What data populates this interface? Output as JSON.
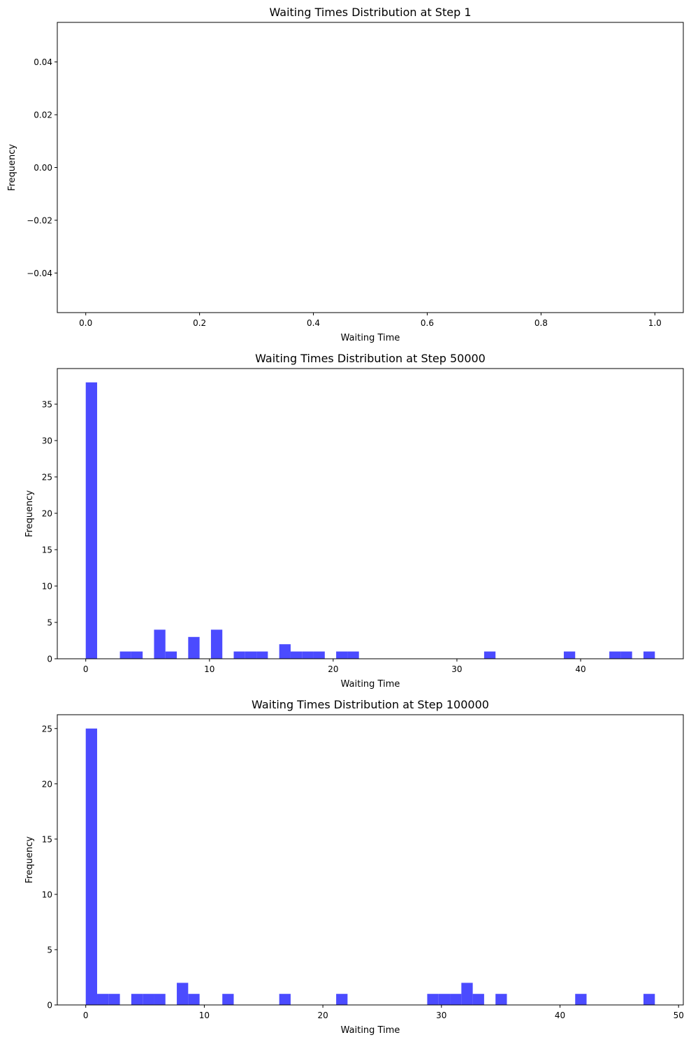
{
  "chart_data": [
    {
      "type": "bar",
      "title": "Waiting Times Distribution at Step 1",
      "xlabel": "Waiting Time",
      "ylabel": "Frequency",
      "xlim": [
        -0.05,
        1.05
      ],
      "ylim": [
        -0.055,
        0.055
      ],
      "xticks": [
        0,
        0.2,
        0.4,
        0.6,
        0.8,
        1.0
      ],
      "xtick_labels": [
        "0.0",
        "0.2",
        "0.4",
        "0.6",
        "0.8",
        "1.0"
      ],
      "yticks": [
        -0.04,
        -0.02,
        0,
        0.02,
        0.04
      ],
      "ytick_labels": [
        "−0.04",
        "−0.02",
        "0.00",
        "0.02",
        "0.04"
      ],
      "bar_color": "#4b4bff",
      "bins": []
    },
    {
      "type": "bar",
      "title": "Waiting Times Distribution at Step 50000",
      "xlabel": "Waiting Time",
      "ylabel": "Frequency",
      "xlim": [
        -2.3,
        48.3
      ],
      "ylim": [
        0,
        39.9
      ],
      "xticks": [
        0,
        10,
        20,
        30,
        40
      ],
      "xtick_labels": [
        "0",
        "10",
        "20",
        "30",
        "40"
      ],
      "yticks": [
        0,
        5,
        10,
        15,
        20,
        25,
        30,
        35
      ],
      "ytick_labels": [
        "0",
        "5",
        "10",
        "15",
        "20",
        "25",
        "30",
        "35"
      ],
      "bar_color": "#4b4bff",
      "bins": [
        {
          "x0": 0.0,
          "x1": 0.92,
          "count": 38
        },
        {
          "x0": 2.76,
          "x1": 3.68,
          "count": 1
        },
        {
          "x0": 3.68,
          "x1": 4.6,
          "count": 1
        },
        {
          "x0": 5.52,
          "x1": 6.44,
          "count": 4
        },
        {
          "x0": 6.44,
          "x1": 7.36,
          "count": 1
        },
        {
          "x0": 8.28,
          "x1": 9.2,
          "count": 3
        },
        {
          "x0": 10.12,
          "x1": 11.04,
          "count": 4
        },
        {
          "x0": 11.96,
          "x1": 12.88,
          "count": 1
        },
        {
          "x0": 12.88,
          "x1": 13.8,
          "count": 1
        },
        {
          "x0": 13.8,
          "x1": 14.72,
          "count": 1
        },
        {
          "x0": 15.64,
          "x1": 16.56,
          "count": 2
        },
        {
          "x0": 16.56,
          "x1": 17.48,
          "count": 1
        },
        {
          "x0": 17.48,
          "x1": 18.4,
          "count": 1
        },
        {
          "x0": 18.4,
          "x1": 19.32,
          "count": 1
        },
        {
          "x0": 20.24,
          "x1": 21.16,
          "count": 1
        },
        {
          "x0": 21.16,
          "x1": 22.08,
          "count": 1
        },
        {
          "x0": 32.2,
          "x1": 33.12,
          "count": 1
        },
        {
          "x0": 38.64,
          "x1": 39.56,
          "count": 1
        },
        {
          "x0": 42.32,
          "x1": 43.24,
          "count": 1
        },
        {
          "x0": 43.24,
          "x1": 44.16,
          "count": 1
        },
        {
          "x0": 45.08,
          "x1": 46.0,
          "count": 1
        }
      ]
    },
    {
      "type": "bar",
      "title": "Waiting Times Distribution at Step 100000",
      "xlabel": "Waiting Time",
      "ylabel": "Frequency",
      "xlim": [
        -2.4,
        50.4
      ],
      "ylim": [
        0,
        26.25
      ],
      "xticks": [
        0,
        10,
        20,
        30,
        40,
        50
      ],
      "xtick_labels": [
        "0",
        "10",
        "20",
        "30",
        "40",
        "50"
      ],
      "yticks": [
        0,
        5,
        10,
        15,
        20,
        25
      ],
      "ytick_labels": [
        "0",
        "5",
        "10",
        "15",
        "20",
        "25"
      ],
      "bar_color": "#4b4bff",
      "bins": [
        {
          "x0": 0.0,
          "x1": 0.96,
          "count": 25
        },
        {
          "x0": 0.96,
          "x1": 1.92,
          "count": 1
        },
        {
          "x0": 1.92,
          "x1": 2.88,
          "count": 1
        },
        {
          "x0": 3.84,
          "x1": 4.8,
          "count": 1
        },
        {
          "x0": 4.8,
          "x1": 5.76,
          "count": 1
        },
        {
          "x0": 5.76,
          "x1": 6.72,
          "count": 1
        },
        {
          "x0": 7.68,
          "x1": 8.64,
          "count": 2
        },
        {
          "x0": 8.64,
          "x1": 9.6,
          "count": 1
        },
        {
          "x0": 11.52,
          "x1": 12.48,
          "count": 1
        },
        {
          "x0": 16.32,
          "x1": 17.28,
          "count": 1
        },
        {
          "x0": 21.12,
          "x1": 22.08,
          "count": 1
        },
        {
          "x0": 28.8,
          "x1": 29.76,
          "count": 1
        },
        {
          "x0": 29.76,
          "x1": 30.72,
          "count": 1
        },
        {
          "x0": 30.72,
          "x1": 31.68,
          "count": 1
        },
        {
          "x0": 31.68,
          "x1": 32.64,
          "count": 2
        },
        {
          "x0": 32.64,
          "x1": 33.6,
          "count": 1
        },
        {
          "x0": 34.56,
          "x1": 35.52,
          "count": 1
        },
        {
          "x0": 41.28,
          "x1": 42.24,
          "count": 1
        },
        {
          "x0": 47.04,
          "x1": 48.0,
          "count": 1
        }
      ]
    }
  ]
}
